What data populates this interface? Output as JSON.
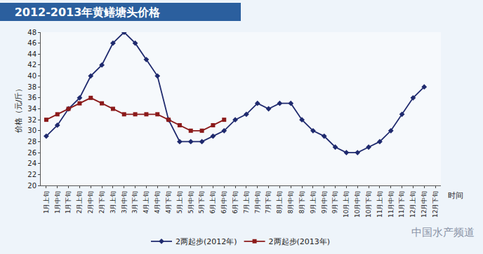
{
  "chart_data": {
    "type": "line",
    "title": "2012-2013年黄鳝塘头价格",
    "x_label": "时间",
    "y_label": "价格（元/斤）",
    "categories": [
      "1月上旬",
      "1月中旬",
      "1月下旬",
      "2月上旬",
      "2月中旬",
      "2月下旬",
      "3月上旬",
      "3月中旬",
      "3月下旬",
      "4月上旬",
      "4月中旬",
      "4月下旬",
      "5月上旬",
      "5月中旬",
      "5月下旬",
      "6月上旬",
      "6月中旬",
      "6月下旬",
      "7月上旬",
      "7月中旬",
      "7月下旬",
      "8月上旬",
      "8月中旬",
      "8月下旬",
      "9月上旬",
      "9月中旬",
      "9月下旬",
      "10月上旬",
      "10月中旬",
      "10月下旬",
      "11月上旬",
      "11月中旬",
      "11月下旬",
      "12月上旬",
      "12月中旬",
      "12月下旬"
    ],
    "series": [
      {
        "name": "2两起步(2012年)",
        "color": "#1f2a6e",
        "marker": "diamond",
        "line_style": "solid",
        "values": [
          29,
          31,
          34,
          36,
          40,
          42,
          46,
          48,
          46,
          43,
          40,
          32,
          28,
          28,
          28,
          29,
          30,
          32,
          33,
          35,
          34,
          35,
          35,
          32,
          30,
          29,
          27,
          26,
          26,
          27,
          28,
          30,
          33,
          36,
          38,
          null
        ]
      },
      {
        "name": "2两起步(2013年)",
        "color": "#8b1a1a",
        "marker": "square",
        "line_style": "solid",
        "values": [
          32,
          33,
          34,
          35,
          36,
          35,
          34,
          33,
          33,
          33,
          33,
          32,
          31,
          30,
          30,
          31,
          32,
          null,
          null,
          null,
          null,
          null,
          null,
          null,
          null,
          null,
          null,
          null,
          null,
          null,
          null,
          null,
          null,
          null,
          null,
          null
        ]
      }
    ],
    "ylim": [
      20,
      48
    ],
    "yticks": [
      20,
      22,
      24,
      26,
      28,
      30,
      32,
      34,
      36,
      38,
      40,
      42,
      44,
      46,
      48
    ],
    "grid": false,
    "legend": "bottom",
    "annotations": [
      "中国水产频道"
    ]
  }
}
